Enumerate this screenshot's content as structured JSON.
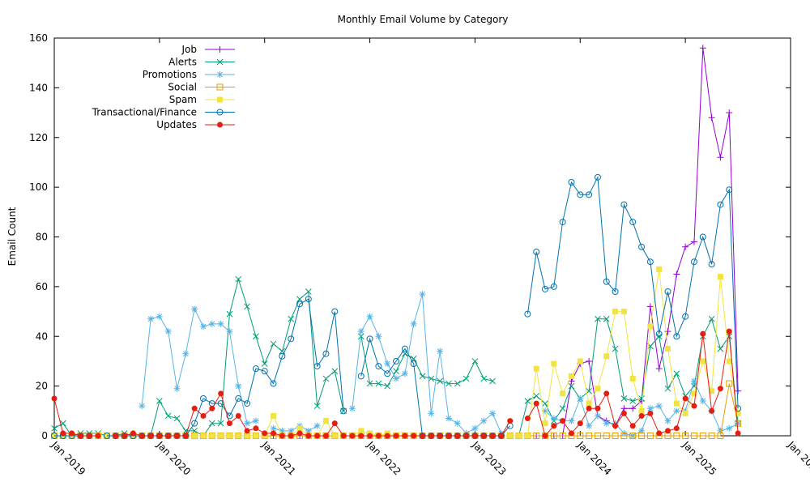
{
  "chart_data": {
    "type": "line",
    "title": "Monthly Email Volume by Category",
    "xlabel": "",
    "ylabel": "Email Count",
    "ylim": [
      0,
      160
    ],
    "xlim": [
      "2019-01",
      "2026-01"
    ],
    "yticks": [
      0,
      20,
      40,
      60,
      80,
      100,
      120,
      140,
      160
    ],
    "xticks": [
      {
        "date": "2019-01",
        "label": "Jan 2019"
      },
      {
        "date": "2020-01",
        "label": "Jan 2020"
      },
      {
        "date": "2021-01",
        "label": "Jan 2021"
      },
      {
        "date": "2022-01",
        "label": "Jan 2022"
      },
      {
        "date": "2023-01",
        "label": "Jan 2023"
      },
      {
        "date": "2024-01",
        "label": "Jan 2024"
      },
      {
        "date": "2025-01",
        "label": "Jan 2025"
      },
      {
        "date": "2026-01",
        "label": "Jan 2026"
      }
    ],
    "grid": false,
    "legend_position": "top-left",
    "x": [
      "2019-01",
      "2019-02",
      "2019-03",
      "2019-04",
      "2019-05",
      "2019-06",
      "2019-07",
      "2019-08",
      "2019-09",
      "2019-10",
      "2019-11",
      "2019-12",
      "2020-01",
      "2020-02",
      "2020-03",
      "2020-04",
      "2020-05",
      "2020-06",
      "2020-07",
      "2020-08",
      "2020-09",
      "2020-10",
      "2020-11",
      "2020-12",
      "2021-01",
      "2021-02",
      "2021-03",
      "2021-04",
      "2021-05",
      "2021-06",
      "2021-07",
      "2021-08",
      "2021-09",
      "2021-10",
      "2021-11",
      "2021-12",
      "2022-01",
      "2022-02",
      "2022-03",
      "2022-04",
      "2022-05",
      "2022-06",
      "2022-07",
      "2022-08",
      "2022-09",
      "2022-10",
      "2022-11",
      "2022-12",
      "2023-01",
      "2023-02",
      "2023-03",
      "2023-04",
      "2023-05",
      "2023-06",
      "2023-07",
      "2023-08",
      "2023-09",
      "2023-10",
      "2023-11",
      "2023-12",
      "2024-01",
      "2024-02",
      "2024-03",
      "2024-04",
      "2024-05",
      "2024-06",
      "2024-07",
      "2024-08",
      "2024-09",
      "2024-10",
      "2024-11",
      "2024-12",
      "2025-01",
      "2025-02",
      "2025-03",
      "2025-04",
      "2025-05",
      "2025-06",
      "2025-07"
    ],
    "series": [
      {
        "name": "Job",
        "color": "#9400d3",
        "marker": "plus",
        "values": [
          0,
          0,
          0,
          0,
          0,
          0,
          0,
          0,
          0,
          0,
          0,
          0,
          0,
          0,
          0,
          0,
          0,
          0,
          0,
          0,
          0,
          0,
          0,
          0,
          0,
          0,
          0,
          0,
          0,
          0,
          0,
          0,
          0,
          0,
          0,
          0,
          0,
          0,
          0,
          0,
          0,
          0,
          0,
          0,
          0,
          0,
          0,
          0,
          0,
          0,
          0,
          0,
          0,
          0,
          0,
          0,
          0,
          0,
          0,
          22,
          29,
          30,
          8,
          6,
          4,
          11,
          11,
          14,
          52,
          27,
          42,
          65,
          76,
          78,
          156,
          128,
          112,
          130,
          18
        ]
      },
      {
        "name": "Alerts",
        "color": "#009e73",
        "marker": "x",
        "values": [
          3,
          5,
          0,
          1,
          1,
          1,
          0,
          0,
          1,
          0,
          0,
          0,
          14,
          8,
          7,
          2,
          2,
          0,
          5,
          5,
          49,
          63,
          52,
          40,
          29,
          37,
          34,
          47,
          55,
          58,
          12,
          23,
          26,
          10,
          null,
          40,
          21,
          21,
          20,
          26,
          33,
          31,
          24,
          23,
          22,
          21,
          21,
          23,
          30,
          23,
          22,
          null,
          null,
          0,
          14,
          16,
          13,
          6,
          11,
          20,
          15,
          18,
          47,
          47,
          35,
          15,
          14,
          15,
          36,
          40,
          19,
          25,
          16,
          20,
          40,
          47,
          35,
          40,
          5
        ]
      },
      {
        "name": "Promotions",
        "color": "#56b4e9",
        "marker": "star",
        "values": [
          null,
          null,
          null,
          null,
          null,
          null,
          0,
          null,
          null,
          null,
          12,
          47,
          48,
          42,
          19,
          33,
          51,
          44,
          45,
          45,
          42,
          20,
          5,
          6,
          null,
          3,
          2,
          2,
          4,
          2,
          4,
          null,
          null,
          null,
          11,
          42,
          48,
          40,
          29,
          23,
          25,
          45,
          57,
          9,
          34,
          7,
          5,
          1,
          3,
          6,
          9,
          1,
          null,
          null,
          null,
          null,
          10,
          7,
          6,
          6,
          15,
          4,
          8,
          5,
          5,
          1,
          0,
          2,
          11,
          12,
          6,
          10,
          10,
          22,
          14,
          10,
          2,
          3,
          5
        ]
      },
      {
        "name": "Social",
        "color": "#e69f00",
        "marker": "square-open",
        "values": [
          0,
          0,
          0,
          0,
          0,
          0,
          0,
          0,
          0,
          0,
          0,
          0,
          0,
          0,
          0,
          0,
          0,
          0,
          0,
          0,
          0,
          0,
          0,
          0,
          0,
          0,
          0,
          0,
          0,
          0,
          0,
          0,
          0,
          0,
          0,
          0,
          0,
          0,
          0,
          0,
          0,
          0,
          0,
          0,
          0,
          0,
          0,
          0,
          0,
          0,
          0,
          0,
          0,
          0,
          0,
          0,
          0,
          0,
          0,
          0,
          0,
          0,
          0,
          0,
          0,
          0,
          0,
          0,
          0,
          0,
          0,
          0,
          0,
          0,
          0,
          0,
          0,
          21,
          5
        ]
      },
      {
        "name": "Spam",
        "color": "#f0e442",
        "marker": "square",
        "values": [
          0,
          0,
          0,
          0,
          0,
          0,
          0,
          0,
          0,
          0,
          0,
          0,
          0,
          0,
          0,
          0,
          0,
          0,
          0,
          0,
          0,
          0,
          0,
          0,
          0,
          8,
          0,
          0,
          3,
          0,
          0,
          6,
          0,
          0,
          0,
          2,
          1,
          0,
          1,
          0,
          0,
          0,
          0,
          0,
          0,
          0,
          0,
          0,
          0,
          0,
          0,
          0,
          0,
          0,
          0,
          27,
          5,
          29,
          17,
          24,
          30,
          13,
          19,
          32,
          50,
          50,
          23,
          10,
          44,
          67,
          35,
          13,
          9,
          17,
          30,
          18,
          64,
          30,
          9
        ]
      },
      {
        "name": "Transactional/Finance",
        "color": "#0072b2",
        "marker": "circle-open",
        "values": [
          0,
          0,
          0,
          0,
          0,
          null,
          0,
          0,
          0,
          0,
          0,
          0,
          0,
          0,
          0,
          0,
          5,
          15,
          13,
          13,
          8,
          15,
          13,
          27,
          26,
          21,
          32,
          39,
          53,
          55,
          28,
          33,
          50,
          10,
          null,
          24,
          39,
          28,
          25,
          30,
          35,
          29,
          0,
          0,
          0,
          0,
          0,
          0,
          0,
          0,
          0,
          0,
          4,
          null,
          49,
          74,
          59,
          60,
          86,
          102,
          97,
          97,
          104,
          62,
          58,
          93,
          86,
          76,
          70,
          41,
          58,
          40,
          48,
          70,
          80,
          69,
          93,
          99,
          11
        ]
      },
      {
        "name": "Updates",
        "color": "#e51e10",
        "marker": "circle",
        "values": [
          15,
          1,
          1,
          0,
          0,
          0,
          null,
          0,
          0,
          1,
          0,
          0,
          0,
          0,
          0,
          0,
          11,
          8,
          11,
          17,
          5,
          8,
          2,
          3,
          1,
          1,
          0,
          0,
          1,
          0,
          0,
          0,
          5,
          0,
          0,
          0,
          0,
          0,
          0,
          0,
          0,
          0,
          0,
          0,
          0,
          0,
          0,
          0,
          0,
          0,
          0,
          0,
          6,
          null,
          7,
          13,
          0,
          4,
          6,
          1,
          5,
          11,
          11,
          17,
          4,
          9,
          4,
          8,
          9,
          1,
          2,
          3,
          15,
          12,
          41,
          10,
          19,
          42,
          1
        ]
      }
    ]
  }
}
